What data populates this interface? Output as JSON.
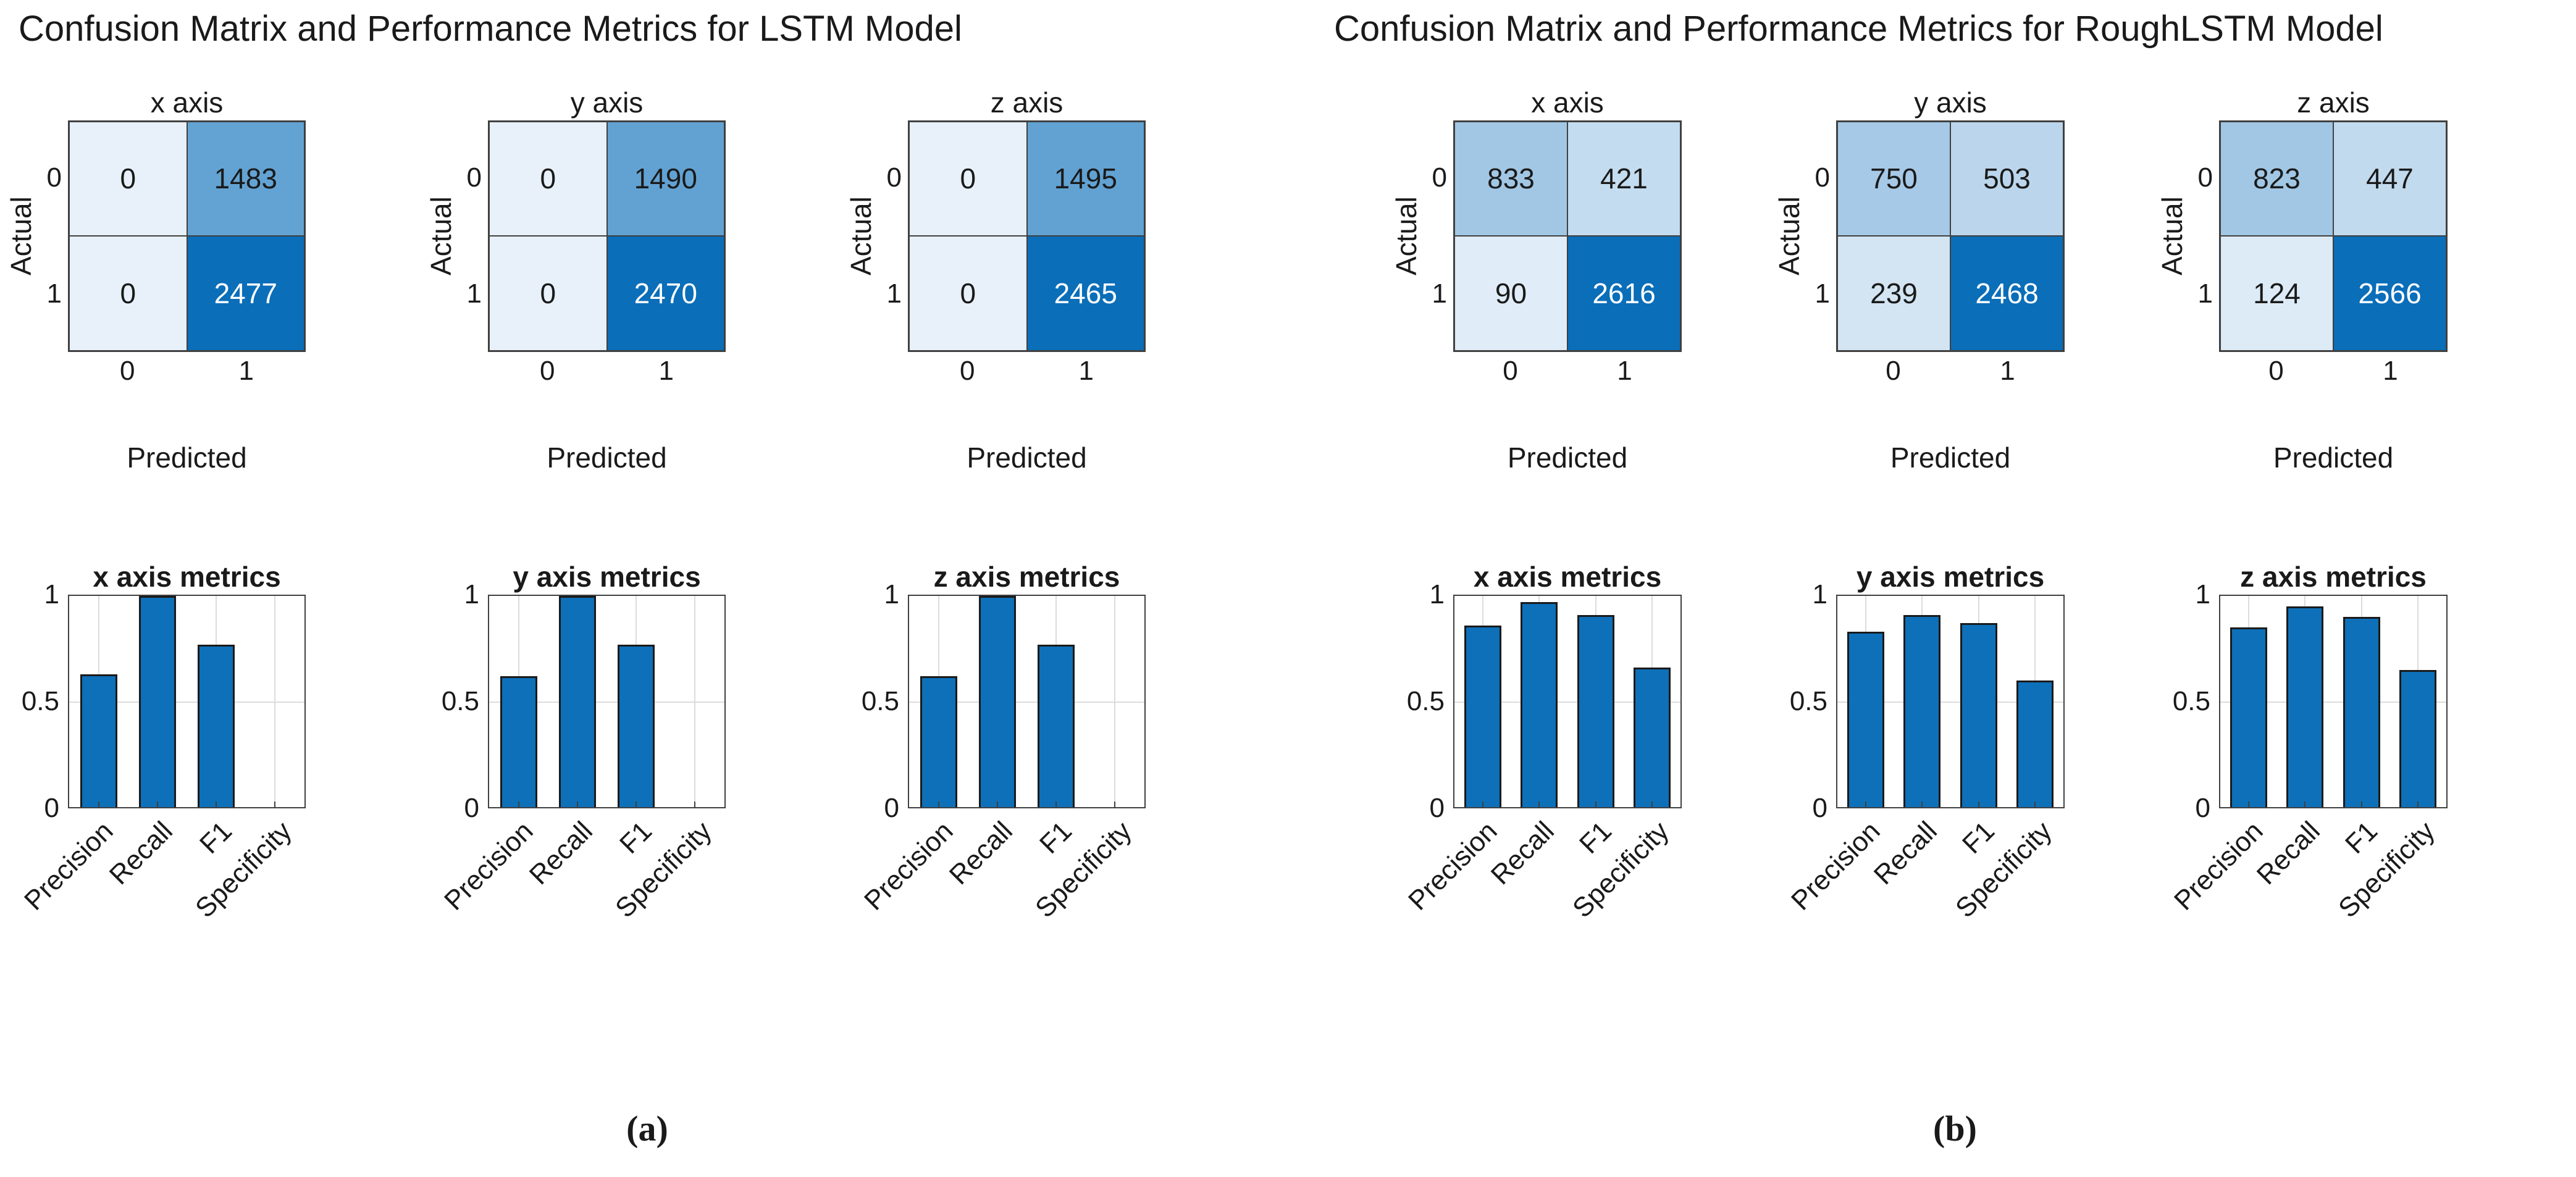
{
  "figure": {
    "panels": [
      {
        "id": "a",
        "title": "Confusion Matrix and Performance Metrics for LSTM Model",
        "caption": "(a)"
      },
      {
        "id": "b",
        "title": "Confusion Matrix and Performance Metrics for RoughLSTM Model",
        "caption": "(b)"
      }
    ]
  },
  "colors": {
    "cell_low": "#e8f1f9",
    "cell_high": "#0a6eb9",
    "bar_fill": "#0d70b9",
    "bar_edge": "#1a1a1a",
    "axis_color": "#404040",
    "grid_color": "#dcdcdc"
  },
  "chart_data": [
    {
      "type": "heatmap",
      "panel": "a",
      "title": "x axis",
      "xlabel": "Predicted",
      "ylabel": "Actual",
      "x_tick_labels": [
        "0",
        "1"
      ],
      "y_tick_labels": [
        "0",
        "1"
      ],
      "values": [
        [
          0,
          1483
        ],
        [
          0,
          2477
        ]
      ]
    },
    {
      "type": "heatmap",
      "panel": "a",
      "title": "y axis",
      "xlabel": "Predicted",
      "ylabel": "Actual",
      "x_tick_labels": [
        "0",
        "1"
      ],
      "y_tick_labels": [
        "0",
        "1"
      ],
      "values": [
        [
          0,
          1490
        ],
        [
          0,
          2470
        ]
      ]
    },
    {
      "type": "heatmap",
      "panel": "a",
      "title": "z axis",
      "xlabel": "Predicted",
      "ylabel": "Actual",
      "x_tick_labels": [
        "0",
        "1"
      ],
      "y_tick_labels": [
        "0",
        "1"
      ],
      "values": [
        [
          0,
          1495
        ],
        [
          0,
          2465
        ]
      ]
    },
    {
      "type": "bar",
      "panel": "a",
      "title": "x axis metrics",
      "categories": [
        "Precision",
        "Recall",
        "F1",
        "Specificity"
      ],
      "values": [
        0.63,
        1.0,
        0.77,
        0.0
      ],
      "ylim": [
        0,
        1
      ],
      "yticks": [
        "0",
        "0.5",
        "1"
      ],
      "grid": "on"
    },
    {
      "type": "bar",
      "panel": "a",
      "title": "y axis metrics",
      "categories": [
        "Precision",
        "Recall",
        "F1",
        "Specificity"
      ],
      "values": [
        0.62,
        1.0,
        0.77,
        0.0
      ],
      "ylim": [
        0,
        1
      ],
      "yticks": [
        "0",
        "0.5",
        "1"
      ],
      "grid": "on"
    },
    {
      "type": "bar",
      "panel": "a",
      "title": "z axis metrics",
      "categories": [
        "Precision",
        "Recall",
        "F1",
        "Specificity"
      ],
      "values": [
        0.62,
        1.0,
        0.77,
        0.0
      ],
      "ylim": [
        0,
        1
      ],
      "yticks": [
        "0",
        "0.5",
        "1"
      ],
      "grid": "on"
    },
    {
      "type": "heatmap",
      "panel": "b",
      "title": "x axis",
      "xlabel": "Predicted",
      "ylabel": "Actual",
      "x_tick_labels": [
        "0",
        "1"
      ],
      "y_tick_labels": [
        "0",
        "1"
      ],
      "values": [
        [
          833,
          421
        ],
        [
          90,
          2616
        ]
      ]
    },
    {
      "type": "heatmap",
      "panel": "b",
      "title": "y axis",
      "xlabel": "Predicted",
      "ylabel": "Actual",
      "x_tick_labels": [
        "0",
        "1"
      ],
      "y_tick_labels": [
        "0",
        "1"
      ],
      "values": [
        [
          750,
          503
        ],
        [
          239,
          2468
        ]
      ]
    },
    {
      "type": "heatmap",
      "panel": "b",
      "title": "z axis",
      "xlabel": "Predicted",
      "ylabel": "Actual",
      "x_tick_labels": [
        "0",
        "1"
      ],
      "y_tick_labels": [
        "0",
        "1"
      ],
      "values": [
        [
          823,
          447
        ],
        [
          124,
          2566
        ]
      ]
    },
    {
      "type": "bar",
      "panel": "b",
      "title": "x axis metrics",
      "categories": [
        "Precision",
        "Recall",
        "F1",
        "Specificity"
      ],
      "values": [
        0.86,
        0.97,
        0.91,
        0.66
      ],
      "ylim": [
        0,
        1
      ],
      "yticks": [
        "0",
        "0.5",
        "1"
      ],
      "grid": "on"
    },
    {
      "type": "bar",
      "panel": "b",
      "title": "y axis metrics",
      "categories": [
        "Precision",
        "Recall",
        "F1",
        "Specificity"
      ],
      "values": [
        0.83,
        0.91,
        0.87,
        0.6
      ],
      "ylim": [
        0,
        1
      ],
      "yticks": [
        "0",
        "0.5",
        "1"
      ],
      "grid": "on"
    },
    {
      "type": "bar",
      "panel": "b",
      "title": "z axis metrics",
      "categories": [
        "Precision",
        "Recall",
        "F1",
        "Specificity"
      ],
      "values": [
        0.85,
        0.95,
        0.9,
        0.65
      ],
      "ylim": [
        0,
        1
      ],
      "yticks": [
        "0",
        "0.5",
        "1"
      ],
      "grid": "on"
    }
  ]
}
